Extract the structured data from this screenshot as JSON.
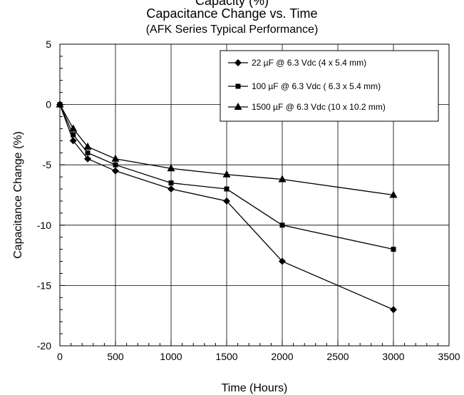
{
  "chart_data": {
    "type": "line",
    "title_partial": "Capacity (%)",
    "title": "Capacitance Change vs. Time",
    "subtitle": "(AFK Series Typical Performance)",
    "xlabel": "Time (Hours)",
    "ylabel": "Capacitance Change (%)",
    "xlim": [
      0,
      3500
    ],
    "ylim": [
      -20,
      5
    ],
    "xticks": [
      0,
      500,
      1000,
      1500,
      2000,
      2500,
      3000,
      3500
    ],
    "yticks": [
      5,
      0,
      -5,
      -10,
      -15,
      -20
    ],
    "grid": true,
    "legend_position": "top-right",
    "series": [
      {
        "name": "22 µF @ 6.3 Vdc (4 x 5.4 mm)",
        "marker": "diamond",
        "x": [
          0,
          120,
          250,
          500,
          1000,
          1500,
          2000,
          3000
        ],
        "y": [
          0,
          -3.0,
          -4.5,
          -5.5,
          -7.0,
          -8.0,
          -13.0,
          -17.0
        ]
      },
      {
        "name": "100 µF @ 6.3 Vdc ( 6.3 x 5.4 mm)",
        "marker": "square",
        "x": [
          0,
          120,
          250,
          500,
          1000,
          1500,
          2000,
          3000
        ],
        "y": [
          0,
          -2.5,
          -4.0,
          -5.0,
          -6.5,
          -7.0,
          -10.0,
          -12.0
        ]
      },
      {
        "name": "1500 µF @ 6.3 Vdc (10 x 10.2 mm)",
        "marker": "triangle",
        "x": [
          0,
          120,
          250,
          500,
          1000,
          1500,
          2000,
          3000
        ],
        "y": [
          0,
          -2.0,
          -3.5,
          -4.5,
          -5.3,
          -5.8,
          -6.2,
          -7.5
        ]
      }
    ]
  }
}
